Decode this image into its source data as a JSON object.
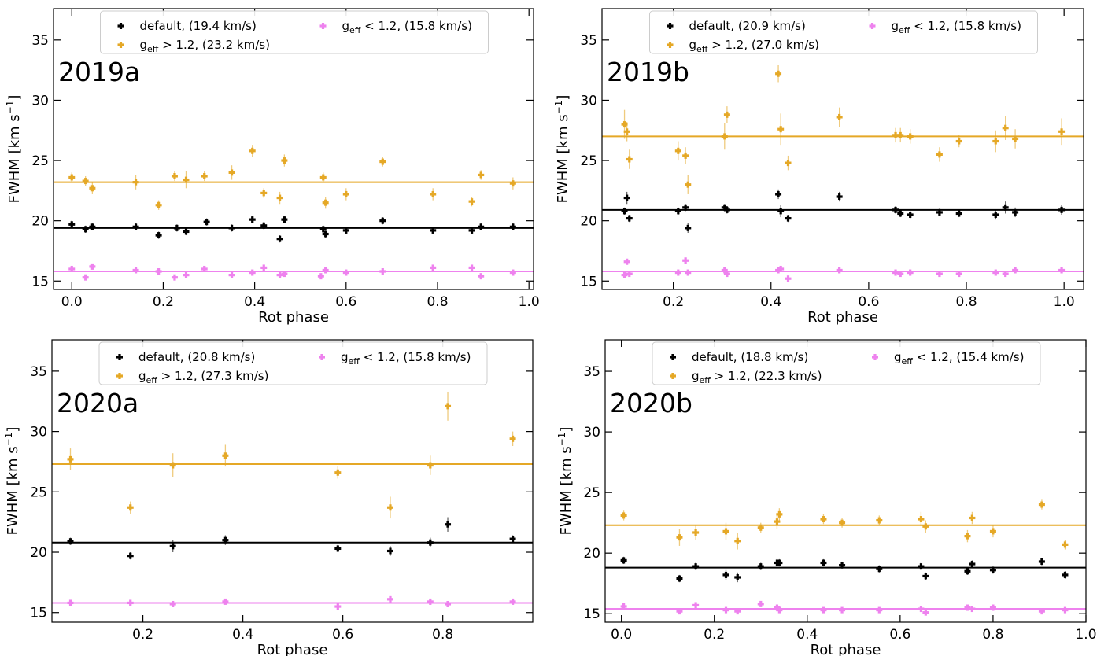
{
  "chart_data": [
    {
      "type": "scatter",
      "panel_label": "2019a",
      "xlabel": "Rot phase",
      "ylabel": "FWHM [km s⁻¹]",
      "xlim": [
        -0.04,
        1.01
      ],
      "ylim": [
        14.3,
        37.6
      ],
      "xticks": [
        0.0,
        0.2,
        0.4,
        0.6,
        0.8,
        1.0
      ],
      "yticks": [
        15,
        20,
        25,
        30,
        35
      ],
      "legend_location": "top-center",
      "series": [
        {
          "name": "default, (19.4 km/s)",
          "color": "#000000",
          "mean": 19.4,
          "x": [
            0.0,
            0.03,
            0.045,
            0.14,
            0.19,
            0.23,
            0.25,
            0.295,
            0.35,
            0.395,
            0.42,
            0.455,
            0.465,
            0.55,
            0.555,
            0.6,
            0.68,
            0.79,
            0.875,
            0.895,
            0.965
          ],
          "y": [
            19.7,
            19.3,
            19.5,
            19.5,
            18.8,
            19.4,
            19.1,
            19.9,
            19.4,
            20.1,
            19.6,
            18.5,
            20.1,
            19.3,
            18.9,
            19.2,
            20.0,
            19.2,
            19.2,
            19.5,
            19.5
          ],
          "yerr": [
            0.3,
            0.3,
            0.3,
            0.3,
            0.3,
            0.3,
            0.3,
            0.3,
            0.3,
            0.3,
            0.3,
            0.3,
            0.3,
            0.3,
            0.3,
            0.3,
            0.3,
            0.3,
            0.3,
            0.3,
            0.3
          ]
        },
        {
          "name": "g_eff > 1.2, (23.2 km/s)",
          "color": "#e5a826",
          "mean": 23.2,
          "x": [
            0.0,
            0.03,
            0.045,
            0.14,
            0.19,
            0.225,
            0.25,
            0.29,
            0.35,
            0.395,
            0.42,
            0.455,
            0.465,
            0.55,
            0.555,
            0.6,
            0.68,
            0.79,
            0.875,
            0.895,
            0.965
          ],
          "y": [
            23.6,
            23.3,
            22.7,
            23.2,
            21.3,
            23.7,
            23.4,
            23.7,
            24.0,
            25.8,
            22.3,
            21.9,
            25.0,
            23.6,
            21.5,
            22.2,
            24.9,
            22.2,
            21.6,
            23.8,
            23.1
          ],
          "yerr": [
            0.4,
            0.4,
            0.5,
            0.6,
            0.4,
            0.4,
            0.7,
            0.4,
            0.6,
            0.5,
            0.4,
            0.5,
            0.5,
            0.4,
            0.5,
            0.5,
            0.4,
            0.5,
            0.4,
            0.4,
            0.5
          ]
        },
        {
          "name": "g_eff < 1.2, (15.8 km/s)",
          "color": "#ee82ee",
          "mean": 15.8,
          "x": [
            0.0,
            0.03,
            0.045,
            0.14,
            0.19,
            0.225,
            0.25,
            0.29,
            0.35,
            0.395,
            0.42,
            0.455,
            0.465,
            0.545,
            0.555,
            0.6,
            0.68,
            0.79,
            0.875,
            0.895,
            0.965
          ],
          "y": [
            16.0,
            15.3,
            16.2,
            15.9,
            15.8,
            15.3,
            15.5,
            16.0,
            15.5,
            15.7,
            16.1,
            15.5,
            15.6,
            15.4,
            15.9,
            15.7,
            15.8,
            16.1,
            16.1,
            15.4,
            15.7
          ],
          "yerr": [
            0.2,
            0.2,
            0.2,
            0.2,
            0.2,
            0.2,
            0.2,
            0.2,
            0.2,
            0.2,
            0.2,
            0.2,
            0.2,
            0.2,
            0.2,
            0.2,
            0.2,
            0.2,
            0.2,
            0.2,
            0.2
          ]
        }
      ]
    },
    {
      "type": "scatter",
      "panel_label": "2019b",
      "xlabel": "Rot phase",
      "ylabel": "FWHM [km s⁻¹]",
      "xlim": [
        0.054,
        1.04
      ],
      "ylim": [
        14.3,
        37.6
      ],
      "xticks": [
        0.2,
        0.4,
        0.6,
        0.8,
        1.0
      ],
      "yticks": [
        15,
        20,
        25,
        30,
        35
      ],
      "legend_location": "top-center",
      "series": [
        {
          "name": "default, (20.9 km/s)",
          "color": "#000000",
          "mean": 20.9,
          "x": [
            0.1,
            0.105,
            0.11,
            0.21,
            0.225,
            0.23,
            0.305,
            0.31,
            0.415,
            0.42,
            0.435,
            0.54,
            0.655,
            0.665,
            0.685,
            0.745,
            0.785,
            0.86,
            0.88,
            0.9,
            0.995
          ],
          "y": [
            20.8,
            21.9,
            20.2,
            20.8,
            21.1,
            19.4,
            21.1,
            20.9,
            22.2,
            20.8,
            20.2,
            22.0,
            20.9,
            20.6,
            20.5,
            20.7,
            20.6,
            20.5,
            21.1,
            20.7,
            20.9
          ],
          "yerr": [
            0.3,
            0.5,
            0.3,
            0.3,
            0.3,
            0.4,
            0.3,
            0.3,
            0.4,
            0.5,
            0.3,
            0.4,
            0.3,
            0.3,
            0.3,
            0.3,
            0.3,
            0.4,
            0.5,
            0.4,
            0.4
          ]
        },
        {
          "name": "g_eff > 1.2, (27.0 km/s)",
          "color": "#e5a826",
          "mean": 27.0,
          "x": [
            0.1,
            0.105,
            0.11,
            0.21,
            0.225,
            0.23,
            0.305,
            0.31,
            0.415,
            0.42,
            0.435,
            0.54,
            0.655,
            0.665,
            0.685,
            0.745,
            0.785,
            0.86,
            0.88,
            0.9,
            0.995
          ],
          "y": [
            28.0,
            27.4,
            25.1,
            25.8,
            25.4,
            23.0,
            27.0,
            28.8,
            32.2,
            27.6,
            24.8,
            28.6,
            27.1,
            27.1,
            27.0,
            25.5,
            26.6,
            26.6,
            27.7,
            26.8,
            27.4
          ],
          "yerr": [
            1.2,
            0.8,
            0.8,
            0.8,
            0.7,
            0.8,
            1.1,
            0.7,
            0.7,
            1.3,
            0.6,
            0.8,
            0.6,
            0.6,
            0.6,
            0.6,
            0.5,
            0.9,
            1.0,
            0.8,
            1.1
          ]
        },
        {
          "name": "g_eff < 1.2, (15.8 km/s)",
          "color": "#ee82ee",
          "mean": 15.8,
          "x": [
            0.1,
            0.105,
            0.11,
            0.21,
            0.225,
            0.23,
            0.305,
            0.31,
            0.415,
            0.42,
            0.435,
            0.54,
            0.655,
            0.665,
            0.685,
            0.745,
            0.785,
            0.86,
            0.88,
            0.9,
            0.995
          ],
          "y": [
            15.5,
            16.6,
            15.6,
            15.7,
            16.7,
            15.7,
            15.9,
            15.6,
            15.9,
            16.0,
            15.2,
            15.9,
            15.7,
            15.6,
            15.7,
            15.6,
            15.6,
            15.7,
            15.6,
            15.9,
            15.9
          ],
          "yerr": [
            0.2,
            0.2,
            0.2,
            0.2,
            0.2,
            0.2,
            0.2,
            0.2,
            0.2,
            0.2,
            0.2,
            0.2,
            0.2,
            0.2,
            0.2,
            0.2,
            0.2,
            0.2,
            0.2,
            0.2,
            0.2
          ]
        }
      ]
    },
    {
      "type": "scatter",
      "panel_label": "2020a",
      "xlabel": "Rot phase",
      "ylabel": "FWHM [km s⁻¹]",
      "xlim": [
        0.018,
        0.98
      ],
      "ylim": [
        14.2,
        37.6
      ],
      "xticks": [
        0.2,
        0.4,
        0.6,
        0.8
      ],
      "yticks": [
        15,
        20,
        25,
        30,
        35
      ],
      "legend_location": "top-center",
      "series": [
        {
          "name": "default, (20.8 km/s)",
          "color": "#000000",
          "mean": 20.8,
          "x": [
            0.055,
            0.175,
            0.26,
            0.365,
            0.59,
            0.695,
            0.775,
            0.81,
            0.94
          ],
          "y": [
            20.9,
            19.7,
            20.5,
            21.0,
            20.3,
            20.1,
            20.8,
            22.3,
            21.1
          ],
          "yerr": [
            0.3,
            0.3,
            0.5,
            0.4,
            0.3,
            0.4,
            0.4,
            0.6,
            0.3
          ]
        },
        {
          "name": "g_eff > 1.2, (27.3 km/s)",
          "color": "#e5a826",
          "mean": 27.3,
          "x": [
            0.055,
            0.175,
            0.26,
            0.365,
            0.59,
            0.695,
            0.775,
            0.81,
            0.94
          ],
          "y": [
            27.7,
            23.7,
            27.2,
            28.0,
            26.6,
            23.7,
            27.2,
            32.1,
            29.4
          ],
          "yerr": [
            0.9,
            0.5,
            1.0,
            0.9,
            0.5,
            0.9,
            0.8,
            1.2,
            0.6
          ]
        },
        {
          "name": "g_eff < 1.2, (15.8 km/s)",
          "color": "#ee82ee",
          "mean": 15.8,
          "x": [
            0.055,
            0.175,
            0.26,
            0.365,
            0.59,
            0.695,
            0.775,
            0.81,
            0.94
          ],
          "y": [
            15.8,
            15.8,
            15.7,
            15.9,
            15.5,
            16.1,
            15.9,
            15.7,
            15.9
          ],
          "yerr": [
            0.2,
            0.2,
            0.2,
            0.2,
            0.2,
            0.2,
            0.2,
            0.2,
            0.2
          ]
        }
      ]
    },
    {
      "type": "scatter",
      "panel_label": "2020b",
      "xlabel": "Rot phase",
      "ylabel": "FWHM [km s⁻¹]",
      "xlim": [
        -0.035,
        1.0
      ],
      "ylim": [
        14.3,
        37.6
      ],
      "xticks": [
        0.0,
        0.2,
        0.4,
        0.6,
        0.8,
        1.0
      ],
      "yticks": [
        15,
        20,
        25,
        30,
        35
      ],
      "legend_location": "top-center",
      "series": [
        {
          "name": "default, (18.8 km/s)",
          "color": "#000000",
          "mean": 18.8,
          "x": [
            0.005,
            0.125,
            0.16,
            0.225,
            0.25,
            0.3,
            0.335,
            0.34,
            0.435,
            0.475,
            0.555,
            0.645,
            0.655,
            0.745,
            0.755,
            0.8,
            0.905,
            0.955
          ],
          "y": [
            19.4,
            17.9,
            18.9,
            18.2,
            18.0,
            18.9,
            19.2,
            19.2,
            19.2,
            19.0,
            18.7,
            18.9,
            18.1,
            18.5,
            19.1,
            18.6,
            19.3,
            18.2
          ],
          "yerr": [
            0.3,
            0.3,
            0.3,
            0.4,
            0.4,
            0.3,
            0.3,
            0.3,
            0.3,
            0.3,
            0.3,
            0.3,
            0.3,
            0.3,
            0.3,
            0.3,
            0.3,
            0.3
          ]
        },
        {
          "name": "g_eff > 1.2, (22.3 km/s)",
          "color": "#e5a826",
          "mean": 22.3,
          "x": [
            0.005,
            0.125,
            0.16,
            0.225,
            0.25,
            0.3,
            0.335,
            0.34,
            0.435,
            0.475,
            0.555,
            0.645,
            0.655,
            0.745,
            0.755,
            0.8,
            0.905,
            0.955
          ],
          "y": [
            23.1,
            21.3,
            21.7,
            21.8,
            21.0,
            22.1,
            22.6,
            23.2,
            22.8,
            22.5,
            22.7,
            22.8,
            22.2,
            21.4,
            22.9,
            21.8,
            24.0,
            20.7
          ],
          "yerr": [
            0.4,
            0.7,
            0.6,
            0.7,
            0.7,
            0.4,
            0.6,
            0.5,
            0.4,
            0.4,
            0.4,
            0.6,
            0.5,
            0.5,
            0.5,
            0.5,
            0.4,
            0.4
          ]
        },
        {
          "name": "g_eff < 1.2, (15.4 km/s)",
          "color": "#ee82ee",
          "mean": 15.4,
          "x": [
            0.005,
            0.125,
            0.16,
            0.225,
            0.25,
            0.3,
            0.335,
            0.34,
            0.435,
            0.475,
            0.555,
            0.645,
            0.655,
            0.745,
            0.755,
            0.8,
            0.905,
            0.955
          ],
          "y": [
            15.6,
            15.2,
            15.7,
            15.3,
            15.2,
            15.8,
            15.5,
            15.3,
            15.3,
            15.3,
            15.3,
            15.4,
            15.1,
            15.5,
            15.4,
            15.5,
            15.2,
            15.3
          ],
          "yerr": [
            0.2,
            0.2,
            0.2,
            0.2,
            0.2,
            0.2,
            0.2,
            0.2,
            0.2,
            0.2,
            0.2,
            0.2,
            0.2,
            0.2,
            0.2,
            0.2,
            0.2,
            0.2
          ]
        }
      ]
    }
  ]
}
